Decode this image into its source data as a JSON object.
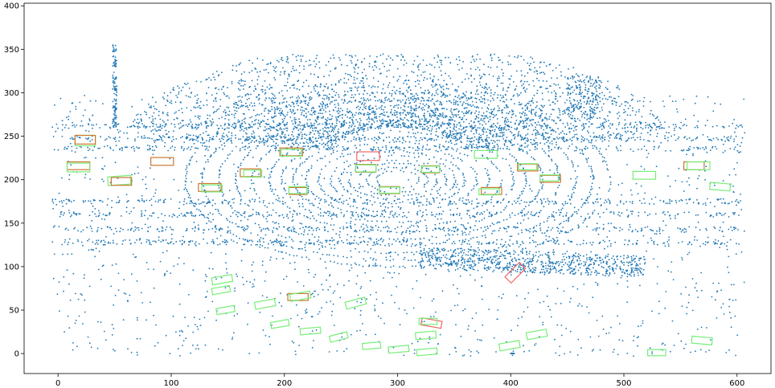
{
  "chart_data": {
    "type": "scatter",
    "title": "",
    "xlabel": "",
    "ylabel": "",
    "xlim": [
      -30,
      630
    ],
    "ylim": [
      -23,
      403
    ],
    "x_ticks": [
      0,
      100,
      200,
      300,
      400,
      500,
      600
    ],
    "y_ticks": [
      0,
      50,
      100,
      150,
      200,
      250,
      300,
      350,
      400
    ],
    "grid": false,
    "legend": "none",
    "point_color": "#1f77b4",
    "description_of_points": "dense LiDAR point cloud in bird's-eye view, centred near (300, 200)",
    "box_colors": {
      "ground_truth": "#77ee77",
      "prediction": "#ee6666",
      "matched": "#cc7733"
    },
    "boxes": [
      {
        "kind": "ground_truth",
        "cx": 24,
        "cy": 245,
        "w": 18,
        "h": 12,
        "angle": 0
      },
      {
        "kind": "matched",
        "cx": 24,
        "cy": 246,
        "w": 18,
        "h": 10,
        "angle": 0
      },
      {
        "kind": "matched",
        "cx": 18,
        "cy": 216,
        "w": 20,
        "h": 9,
        "angle": 0
      },
      {
        "kind": "ground_truth",
        "cx": 18,
        "cy": 214,
        "w": 20,
        "h": 10,
        "angle": 0
      },
      {
        "kind": "ground_truth",
        "cx": 54,
        "cy": 199,
        "w": 20,
        "h": 10,
        "angle": 4
      },
      {
        "kind": "matched",
        "cx": 56,
        "cy": 198,
        "w": 18,
        "h": 9,
        "angle": 0
      },
      {
        "kind": "matched",
        "cx": 92,
        "cy": 221,
        "w": 20,
        "h": 9,
        "angle": 0
      },
      {
        "kind": "matched",
        "cx": 134,
        "cy": 191,
        "w": 20,
        "h": 9,
        "angle": 0
      },
      {
        "kind": "ground_truth",
        "cx": 136,
        "cy": 190,
        "w": 18,
        "h": 8,
        "angle": 0
      },
      {
        "kind": "matched",
        "cx": 170,
        "cy": 208,
        "w": 18,
        "h": 9,
        "angle": 0
      },
      {
        "kind": "ground_truth",
        "cx": 172,
        "cy": 207,
        "w": 16,
        "h": 8,
        "angle": 0
      },
      {
        "kind": "matched",
        "cx": 206,
        "cy": 232,
        "w": 20,
        "h": 9,
        "angle": 0
      },
      {
        "kind": "ground_truth",
        "cx": 206,
        "cy": 231,
        "w": 18,
        "h": 8,
        "angle": 0
      },
      {
        "kind": "matched",
        "cx": 212,
        "cy": 187,
        "w": 16,
        "h": 8,
        "angle": 0
      },
      {
        "kind": "ground_truth",
        "cx": 212,
        "cy": 188,
        "w": 16,
        "h": 8,
        "angle": 0
      },
      {
        "kind": "prediction",
        "cx": 274,
        "cy": 227,
        "w": 20,
        "h": 10,
        "angle": 0
      },
      {
        "kind": "matched",
        "cx": 272,
        "cy": 213,
        "w": 18,
        "h": 9,
        "angle": 0
      },
      {
        "kind": "ground_truth",
        "cx": 272,
        "cy": 213,
        "w": 18,
        "h": 8,
        "angle": 0
      },
      {
        "kind": "matched",
        "cx": 293,
        "cy": 188,
        "w": 18,
        "h": 8,
        "angle": 0
      },
      {
        "kind": "ground_truth",
        "cx": 293,
        "cy": 188,
        "w": 18,
        "h": 7,
        "angle": 0
      },
      {
        "kind": "matched",
        "cx": 329,
        "cy": 212,
        "w": 16,
        "h": 8,
        "angle": 0
      },
      {
        "kind": "ground_truth",
        "cx": 329,
        "cy": 212,
        "w": 16,
        "h": 7,
        "angle": 0
      },
      {
        "kind": "ground_truth",
        "cx": 378,
        "cy": 229,
        "w": 20,
        "h": 9,
        "angle": 0
      },
      {
        "kind": "matched",
        "cx": 383,
        "cy": 187,
        "w": 18,
        "h": 8,
        "angle": 0
      },
      {
        "kind": "ground_truth",
        "cx": 381,
        "cy": 186,
        "w": 18,
        "h": 7,
        "angle": 0
      },
      {
        "kind": "matched",
        "cx": 415,
        "cy": 214,
        "w": 18,
        "h": 8,
        "angle": 0
      },
      {
        "kind": "ground_truth",
        "cx": 415,
        "cy": 215,
        "w": 16,
        "h": 7,
        "angle": 0
      },
      {
        "kind": "matched",
        "cx": 435,
        "cy": 201,
        "w": 18,
        "h": 8,
        "angle": 0
      },
      {
        "kind": "ground_truth",
        "cx": 434,
        "cy": 202,
        "w": 16,
        "h": 7,
        "angle": 0
      },
      {
        "kind": "ground_truth",
        "cx": 518,
        "cy": 205,
        "w": 20,
        "h": 9,
        "angle": 0
      },
      {
        "kind": "matched",
        "cx": 562,
        "cy": 216,
        "w": 18,
        "h": 9,
        "angle": 0
      },
      {
        "kind": "ground_truth",
        "cx": 566,
        "cy": 216,
        "w": 20,
        "h": 9,
        "angle": 0
      },
      {
        "kind": "ground_truth",
        "cx": 585,
        "cy": 192,
        "w": 18,
        "h": 8,
        "angle": -5
      },
      {
        "kind": "prediction",
        "cx": 404,
        "cy": 93,
        "w": 18,
        "h": 10,
        "angle": 45
      },
      {
        "kind": "ground_truth",
        "cx": 145,
        "cy": 85,
        "w": 18,
        "h": 8,
        "angle": 10
      },
      {
        "kind": "ground_truth",
        "cx": 144,
        "cy": 73,
        "w": 16,
        "h": 7,
        "angle": 10
      },
      {
        "kind": "ground_truth",
        "cx": 148,
        "cy": 50,
        "w": 16,
        "h": 7,
        "angle": 10
      },
      {
        "kind": "ground_truth",
        "cx": 183,
        "cy": 57,
        "w": 18,
        "h": 8,
        "angle": 10
      },
      {
        "kind": "matched",
        "cx": 212,
        "cy": 65,
        "w": 18,
        "h": 8,
        "angle": 0
      },
      {
        "kind": "ground_truth",
        "cx": 214,
        "cy": 66,
        "w": 18,
        "h": 8,
        "angle": 10
      },
      {
        "kind": "ground_truth",
        "cx": 263,
        "cy": 58,
        "w": 18,
        "h": 8,
        "angle": 15
      },
      {
        "kind": "ground_truth",
        "cx": 196,
        "cy": 34,
        "w": 16,
        "h": 7,
        "angle": 10
      },
      {
        "kind": "ground_truth",
        "cx": 223,
        "cy": 26,
        "w": 18,
        "h": 7,
        "angle": 5
      },
      {
        "kind": "ground_truth",
        "cx": 248,
        "cy": 19,
        "w": 16,
        "h": 7,
        "angle": 15
      },
      {
        "kind": "ground_truth",
        "cx": 277,
        "cy": 9,
        "w": 16,
        "h": 7,
        "angle": 5
      },
      {
        "kind": "ground_truth",
        "cx": 301,
        "cy": 5,
        "w": 18,
        "h": 7,
        "angle": 5
      },
      {
        "kind": "ground_truth",
        "cx": 326,
        "cy": 2,
        "w": 18,
        "h": 7,
        "angle": 5
      },
      {
        "kind": "ground_truth",
        "cx": 325,
        "cy": 21,
        "w": 18,
        "h": 8,
        "angle": 5
      },
      {
        "kind": "prediction",
        "cx": 330,
        "cy": 35,
        "w": 18,
        "h": 8,
        "angle": -10
      },
      {
        "kind": "ground_truth",
        "cx": 327,
        "cy": 37,
        "w": 16,
        "h": 7,
        "angle": 0
      },
      {
        "kind": "ground_truth",
        "cx": 399,
        "cy": 9,
        "w": 18,
        "h": 8,
        "angle": 10
      },
      {
        "kind": "ground_truth",
        "cx": 423,
        "cy": 22,
        "w": 18,
        "h": 8,
        "angle": 10
      },
      {
        "kind": "ground_truth",
        "cx": 529,
        "cy": 1,
        "w": 16,
        "h": 7,
        "angle": 0
      },
      {
        "kind": "ground_truth",
        "cx": 569,
        "cy": 15,
        "w": 18,
        "h": 8,
        "angle": -5
      }
    ]
  }
}
